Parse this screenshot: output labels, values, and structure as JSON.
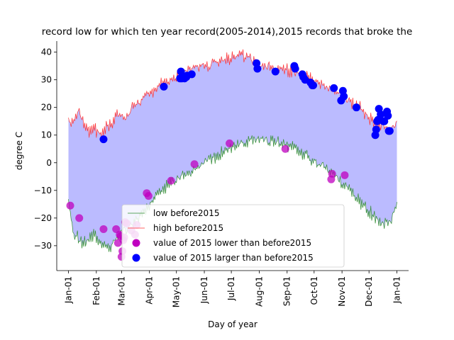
{
  "chart_data": {
    "type": "line",
    "title": "record low for which ten year record(2005-2014),2015 records that broke the",
    "xlabel": "Day of year",
    "ylabel": "degree C",
    "xlim": [
      -13,
      378
    ],
    "ylim": [
      -39,
      44
    ],
    "x_ticks": [
      {
        "label": "Jan-01",
        "value": 0
      },
      {
        "label": "Feb-01",
        "value": 31
      },
      {
        "label": "Mar-01",
        "value": 59
      },
      {
        "label": "Apr-01",
        "value": 90
      },
      {
        "label": "May-01",
        "value": 120
      },
      {
        "label": "Jun-01",
        "value": 151
      },
      {
        "label": "Jul-01",
        "value": 181
      },
      {
        "label": "Aug-01",
        "value": 212
      },
      {
        "label": "Sep-01",
        "value": 243
      },
      {
        "label": "Oct-01",
        "value": 273
      },
      {
        "label": "Nov-01",
        "value": 304
      },
      {
        "label": "Dec-01",
        "value": 334
      },
      {
        "label": "Jan-01",
        "value": 365
      }
    ],
    "y_ticks": [
      -30,
      -20,
      -10,
      0,
      10,
      20,
      30,
      40
    ],
    "fill_color": "#bbbbff",
    "legend": {
      "placement": "lower-center",
      "entries": [
        {
          "label": "low before2015",
          "kind": "line",
          "color": "#2e8b2e"
        },
        {
          "label": "high before2015",
          "kind": "line",
          "color": "#ff3030"
        },
        {
          "label": "value of 2015 lower than before2015",
          "kind": "marker",
          "color": "#bf00bf"
        },
        {
          "label": "value of 2015 larger than before2015",
          "kind": "marker",
          "color": "#0000ff"
        }
      ]
    },
    "series": [
      {
        "name": "low before2015",
        "color": "#2e8b2e",
        "x": [
          0,
          6,
          12,
          18,
          24,
          30,
          36,
          42,
          48,
          54,
          60,
          66,
          72,
          78,
          84,
          90,
          96,
          102,
          108,
          114,
          120,
          126,
          132,
          138,
          144,
          150,
          156,
          162,
          168,
          174,
          180,
          186,
          192,
          198,
          204,
          210,
          216,
          222,
          228,
          234,
          240,
          246,
          252,
          258,
          264,
          270,
          276,
          282,
          288,
          294,
          300,
          306,
          312,
          318,
          324,
          330,
          336,
          342,
          348,
          354,
          360,
          365
        ],
        "values": [
          -15,
          -25,
          -28,
          -29,
          -27,
          -26,
          -29,
          -31,
          -30,
          -28,
          -25,
          -24,
          -22,
          -20,
          -17,
          -15,
          -12,
          -10,
          -9,
          -7,
          -6,
          -5,
          -4,
          -3,
          -1,
          0,
          1,
          2,
          3,
          4,
          5,
          6,
          7,
          7.5,
          8,
          8.5,
          8.5,
          8,
          8,
          7.5,
          7,
          6,
          5,
          4,
          3,
          1,
          0,
          -1,
          -2,
          -4,
          -6,
          -8,
          -10,
          -12,
          -14,
          -16,
          -18,
          -20,
          -22,
          -22,
          -20,
          -15
        ]
      },
      {
        "name": "high before2015",
        "color": "#ff3030",
        "x": [
          0,
          6,
          12,
          18,
          24,
          30,
          36,
          42,
          48,
          54,
          60,
          66,
          72,
          78,
          84,
          90,
          96,
          102,
          108,
          114,
          120,
          126,
          132,
          138,
          144,
          150,
          156,
          162,
          168,
          174,
          180,
          186,
          192,
          198,
          204,
          210,
          216,
          222,
          228,
          234,
          240,
          246,
          252,
          258,
          264,
          270,
          276,
          282,
          288,
          294,
          300,
          306,
          312,
          318,
          324,
          330,
          336,
          342,
          348,
          354,
          360,
          365
        ],
        "values": [
          15,
          14,
          19,
          12,
          11,
          12,
          10,
          13,
          14,
          18,
          16,
          17,
          21,
          22,
          24,
          25,
          26,
          28,
          29,
          30,
          31,
          32,
          33,
          34,
          34,
          35,
          35,
          36,
          37,
          37,
          38,
          38,
          39,
          38,
          37,
          36,
          35,
          35,
          34,
          34,
          34,
          33,
          33,
          32,
          31,
          30,
          29,
          28,
          27,
          26,
          25,
          24,
          22,
          21,
          20,
          18,
          16,
          14,
          14,
          12,
          12,
          16
        ]
      },
      {
        "name": "value of 2015 lower than before2015",
        "type": "scatter",
        "color": "#bf00bf",
        "x": [
          2,
          12,
          39,
          53,
          55,
          57,
          58,
          59,
          60,
          61,
          62,
          63,
          65,
          70,
          74,
          76,
          87,
          89,
          114,
          140,
          179,
          241,
          292,
          293,
          307
        ],
        "values": [
          -15.5,
          -20,
          -24,
          -24,
          -29,
          -26,
          -26.5,
          -34,
          -32,
          -28,
          -27,
          -21.5,
          -22,
          -24.5,
          -26,
          -22.5,
          -11,
          -12,
          -6.5,
          -0.5,
          7,
          5,
          -6,
          -4,
          -4.5
        ]
      },
      {
        "name": "value of 2015 larger than before2015",
        "type": "scatter",
        "color": "#0000ff",
        "x": [
          39,
          106,
          124,
          125,
          126,
          129,
          131,
          132,
          137,
          209,
          210,
          230,
          251,
          252,
          260,
          261,
          263,
          269,
          271,
          272,
          295,
          303,
          305,
          306,
          320,
          341,
          342,
          343,
          344,
          345,
          347,
          350,
          351,
          354,
          355,
          356,
          357
        ],
        "values": [
          8.5,
          27.5,
          30.5,
          33,
          30.5,
          30.5,
          31,
          31.5,
          32,
          36,
          34,
          33,
          35,
          34,
          32,
          31,
          30,
          29,
          28,
          28,
          27,
          22.5,
          26,
          24,
          20,
          10,
          12,
          15,
          15.5,
          19.5,
          17.5,
          15,
          15,
          18.5,
          17,
          11.5,
          11.5
        ]
      }
    ]
  }
}
